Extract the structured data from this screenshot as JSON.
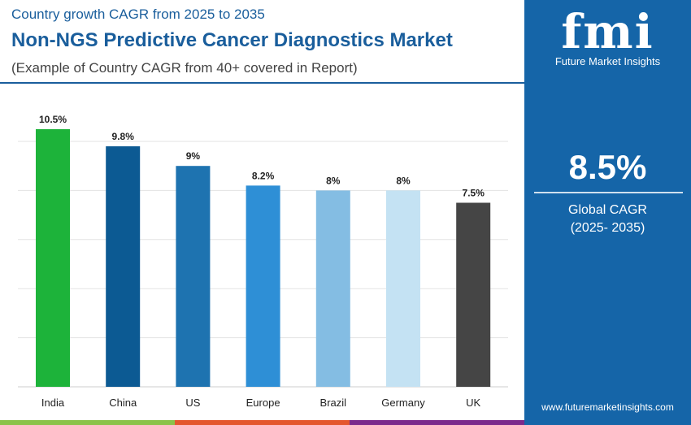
{
  "header": {
    "kicker": "Country growth CAGR from 2025 to 2035",
    "title": "Non-NGS Predictive Cancer Diagnostics Market",
    "subtitle": "(Example of Country CAGR from 40+ covered in Report)"
  },
  "sidebar": {
    "logo_text": "Future Market Insights",
    "logo_mark": "fmi",
    "global_value": "8.5%",
    "global_label": "Global CAGR",
    "global_period": "(2025- 2035)",
    "url": "www.futuremarketinsights.com",
    "background": "#1565a8"
  },
  "chart_data": {
    "type": "bar",
    "categories": [
      "India",
      "China",
      "US",
      "Europe",
      "Brazil",
      "Germany",
      "UK"
    ],
    "values": [
      10.5,
      9.8,
      9,
      8.2,
      8,
      8,
      7.5
    ],
    "labels": [
      "10.5%",
      "9.8%",
      "9%",
      "8.2%",
      "8%",
      "8%",
      "7.5%"
    ],
    "colors": [
      "#1db33a",
      "#0c5a93",
      "#1e73b0",
      "#2e8fd6",
      "#84bde3",
      "#c4e2f3",
      "#454545"
    ],
    "ylim": [
      0,
      12
    ],
    "grid": true,
    "xlabel": "",
    "ylabel": ""
  },
  "footer_colors": [
    "#8bc34a",
    "#e4572e",
    "#7b2a8c"
  ]
}
